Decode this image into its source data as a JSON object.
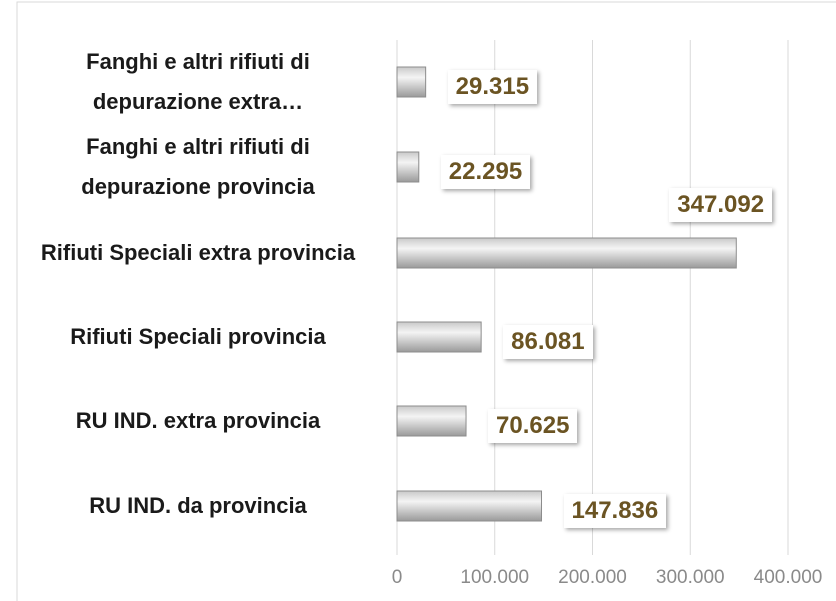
{
  "chart_data": {
    "type": "bar",
    "orientation": "horizontal",
    "categories": [
      "Fanghi e altri rifiuti di depurazione extra…",
      "Fanghi e altri rifiuti di depurazione provincia",
      "Rifiuti Speciali extra provincia",
      "Rifiuti Speciali provincia",
      "RU IND. extra provincia",
      "RU IND. da provincia"
    ],
    "values": [
      29315,
      22295,
      347092,
      86081,
      70625,
      147836
    ],
    "value_labels": [
      "29.315",
      "22.295",
      "347.092",
      "86.081",
      "70.625",
      "147.836"
    ],
    "color": "#bfbfbf",
    "xlim": [
      0,
      400000
    ],
    "xticks": [
      0,
      {
        "value": 100000,
        "label": "100.000"
      },
      {
        "value": 200000,
        "label": "200.000"
      },
      {
        "value": 300000,
        "label": "300.000"
      },
      {
        "value": 400000,
        "label": "400.000"
      }
    ],
    "grid": true
  }
}
